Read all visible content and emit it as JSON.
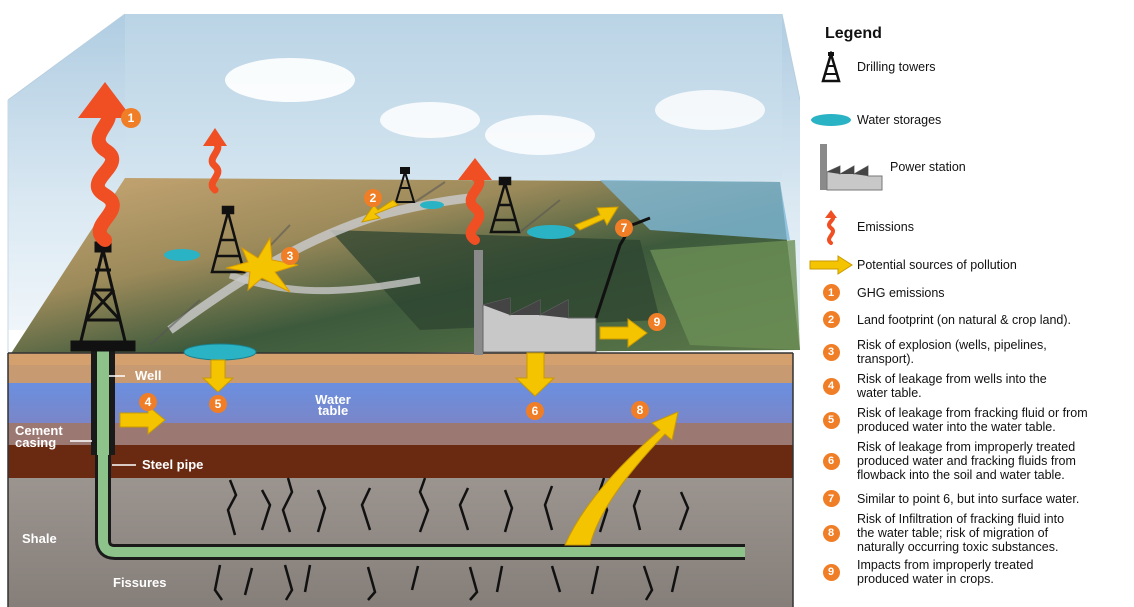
{
  "scene_labels": {
    "well": "Well",
    "water_table": [
      "Water",
      "table"
    ],
    "cement_casing": [
      "Cement",
      "casing"
    ],
    "steel_pipe": "Steel pipe",
    "shale": "Shale",
    "fissures": "Fissures"
  },
  "badges": [
    "1",
    "2",
    "3",
    "4",
    "5",
    "6",
    "7",
    "8",
    "9"
  ],
  "legend": {
    "title": "Legend",
    "symbols": [
      {
        "icon": "drilling-tower-icon",
        "label": "Drilling towers"
      },
      {
        "icon": "water-storage-icon",
        "label": "Water storages"
      },
      {
        "icon": "power-station-icon",
        "label": "Power station"
      },
      {
        "icon": "emissions-icon",
        "label": "Emissions"
      },
      {
        "icon": "arrow-icon",
        "label": "Potential sources of pollution"
      }
    ],
    "items": [
      {
        "num": "1",
        "lines": [
          "GHG emissions"
        ]
      },
      {
        "num": "2",
        "lines": [
          "Land footprint (on natural & crop land)."
        ]
      },
      {
        "num": "3",
        "lines": [
          "Risk of explosion (wells, pipelines,",
          "transport)."
        ]
      },
      {
        "num": "4",
        "lines": [
          "Risk of leakage from wells into the",
          "water table."
        ]
      },
      {
        "num": "5",
        "lines": [
          "Risk of leakage from fracking fluid or from",
          "produced water into the water table."
        ]
      },
      {
        "num": "6",
        "lines": [
          "Risk of leakage from improperly treated",
          "produced water and fracking fluids from",
          "flowback into the soil and water table."
        ]
      },
      {
        "num": "7",
        "lines": [
          "Similar to point 6, but into surface water."
        ]
      },
      {
        "num": "8",
        "lines": [
          "Risk of Infiltration of fracking fluid into",
          "the water table; risk of migration of",
          "naturally occurring toxic substances."
        ]
      },
      {
        "num": "9",
        "lines": [
          "Impacts from improperly treated",
          "produced water in crops."
        ]
      }
    ]
  },
  "colors": {
    "badge": "#f07e26",
    "arrow": "#f5c400",
    "emission": "#f04e23",
    "water_storage": "#2ab3c4",
    "water_table": "#5e86d9",
    "shale": "#8f8883",
    "pipe": "#8dc38a"
  }
}
